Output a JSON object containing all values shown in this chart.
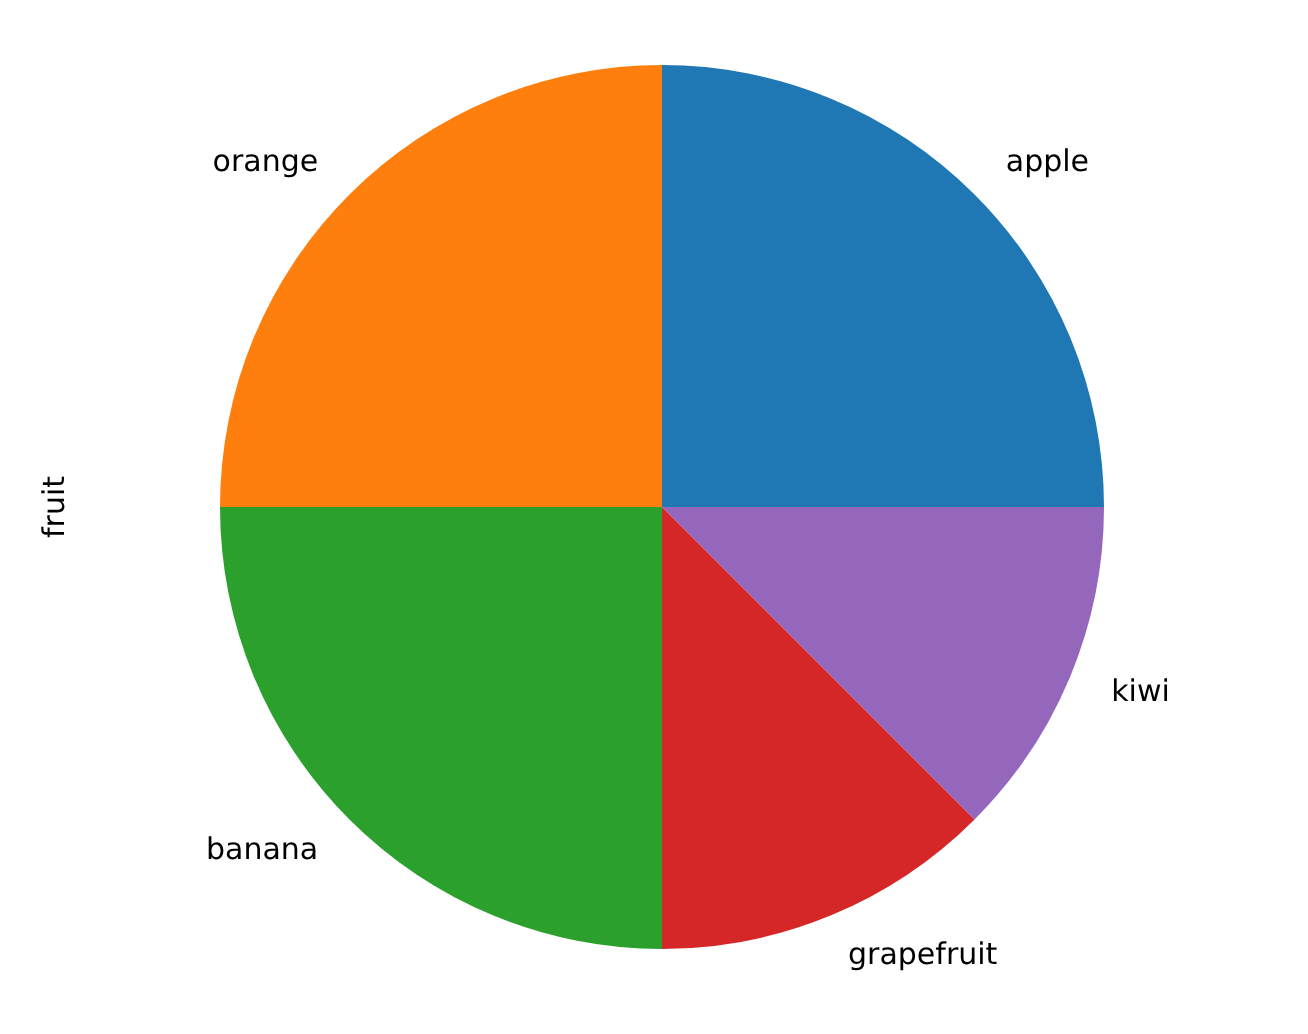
{
  "chart_data": {
    "type": "pie",
    "ylabel": "fruit",
    "categories": [
      "apple",
      "orange",
      "banana",
      "grapefruit",
      "kiwi"
    ],
    "values": [
      25,
      25,
      25,
      12.5,
      12.5
    ],
    "colors": [
      "#1f77b4",
      "#ff7f0e",
      "#2ca02c",
      "#d62728",
      "#9467bd"
    ],
    "legend": false
  }
}
